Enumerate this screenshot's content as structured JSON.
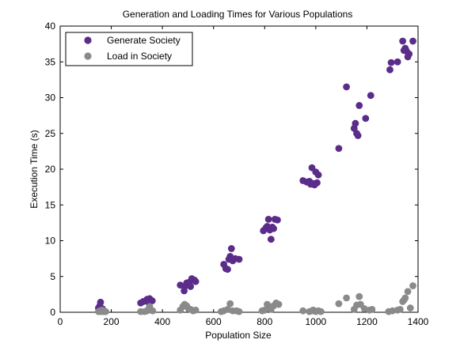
{
  "chart_data": {
    "type": "scatter",
    "title": "Generation and Loading Times for Various Populations",
    "xlabel": "Population Size",
    "ylabel": "Execution Time (s)",
    "xlim": [
      0,
      1400
    ],
    "ylim": [
      0,
      40
    ],
    "xticks": [
      0,
      200,
      400,
      600,
      800,
      1000,
      1200,
      1400
    ],
    "yticks": [
      0,
      5,
      10,
      15,
      20,
      25,
      30,
      35,
      40
    ],
    "grid": false,
    "legend_position": "top-left",
    "series": [
      {
        "name": "Generate Society",
        "color": "#5b2c8a",
        "points": [
          [
            150,
            0.6
          ],
          [
            155,
            0.9
          ],
          [
            158,
            1.4
          ],
          [
            162,
            0.3
          ],
          [
            165,
            0.5
          ],
          [
            168,
            0.2
          ],
          [
            172,
            0.1
          ],
          [
            315,
            1.3
          ],
          [
            325,
            1.5
          ],
          [
            335,
            1.6
          ],
          [
            340,
            1.8
          ],
          [
            345,
            1.4
          ],
          [
            350,
            1.9
          ],
          [
            355,
            1.7
          ],
          [
            360,
            1.6
          ],
          [
            470,
            3.8
          ],
          [
            485,
            3.0
          ],
          [
            490,
            3.7
          ],
          [
            495,
            4.1
          ],
          [
            505,
            4.2
          ],
          [
            510,
            3.6
          ],
          [
            515,
            4.7
          ],
          [
            525,
            4.5
          ],
          [
            530,
            4.3
          ],
          [
            640,
            6.7
          ],
          [
            648,
            6.1
          ],
          [
            655,
            6.0
          ],
          [
            660,
            7.4
          ],
          [
            665,
            7.8
          ],
          [
            670,
            8.9
          ],
          [
            675,
            7.2
          ],
          [
            685,
            7.5
          ],
          [
            700,
            7.4
          ],
          [
            795,
            11.4
          ],
          [
            805,
            11.8
          ],
          [
            810,
            12.0
          ],
          [
            815,
            13.0
          ],
          [
            820,
            11.5
          ],
          [
            825,
            10.2
          ],
          [
            830,
            11.9
          ],
          [
            835,
            11.7
          ],
          [
            840,
            13.0
          ],
          [
            850,
            12.9
          ],
          [
            950,
            18.4
          ],
          [
            965,
            18.2
          ],
          [
            975,
            18.3
          ],
          [
            980,
            17.9
          ],
          [
            985,
            20.2
          ],
          [
            990,
            18.0
          ],
          [
            995,
            17.8
          ],
          [
            1000,
            19.6
          ],
          [
            1005,
            18.1
          ],
          [
            1010,
            19.2
          ],
          [
            1090,
            22.9
          ],
          [
            1120,
            31.5
          ],
          [
            1150,
            25.7
          ],
          [
            1155,
            26.4
          ],
          [
            1160,
            25.0
          ],
          [
            1165,
            24.7
          ],
          [
            1170,
            28.9
          ],
          [
            1195,
            27.1
          ],
          [
            1215,
            30.3
          ],
          [
            1290,
            33.9
          ],
          [
            1295,
            34.9
          ],
          [
            1320,
            35.0
          ],
          [
            1340,
            37.9
          ],
          [
            1345,
            36.6
          ],
          [
            1350,
            36.9
          ],
          [
            1355,
            36.5
          ],
          [
            1360,
            35.7
          ],
          [
            1365,
            36.1
          ],
          [
            1380,
            37.9
          ]
        ]
      },
      {
        "name": "Load in Society",
        "color": "#8a8a8a",
        "points": [
          [
            150,
            0.1
          ],
          [
            155,
            0.2
          ],
          [
            160,
            0.1
          ],
          [
            165,
            0.3
          ],
          [
            170,
            0.1
          ],
          [
            178,
            0.1
          ],
          [
            315,
            0.1
          ],
          [
            330,
            0.1
          ],
          [
            340,
            0.2
          ],
          [
            345,
            0.4
          ],
          [
            350,
            0.8
          ],
          [
            355,
            0.3
          ],
          [
            362,
            0.2
          ],
          [
            470,
            0.3
          ],
          [
            480,
            0.8
          ],
          [
            487,
            1.1
          ],
          [
            495,
            0.9
          ],
          [
            502,
            0.5
          ],
          [
            510,
            0.4
          ],
          [
            520,
            0.2
          ],
          [
            530,
            0.3
          ],
          [
            630,
            0.1
          ],
          [
            640,
            0.2
          ],
          [
            655,
            0.4
          ],
          [
            665,
            1.2
          ],
          [
            675,
            0.2
          ],
          [
            690,
            0.2
          ],
          [
            700,
            0.1
          ],
          [
            790,
            0.2
          ],
          [
            800,
            0.3
          ],
          [
            810,
            1.1
          ],
          [
            818,
            0.5
          ],
          [
            825,
            0.4
          ],
          [
            835,
            0.9
          ],
          [
            845,
            1.3
          ],
          [
            855,
            1.1
          ],
          [
            950,
            0.2
          ],
          [
            975,
            0.1
          ],
          [
            985,
            0.2
          ],
          [
            990,
            0.3
          ],
          [
            1000,
            0.1
          ],
          [
            1010,
            0.2
          ],
          [
            1020,
            0.1
          ],
          [
            1090,
            1.2
          ],
          [
            1120,
            2.0
          ],
          [
            1150,
            0.4
          ],
          [
            1160,
            1.0
          ],
          [
            1170,
            2.2
          ],
          [
            1175,
            1.1
          ],
          [
            1190,
            0.5
          ],
          [
            1210,
            0.3
          ],
          [
            1220,
            0.4
          ],
          [
            1285,
            0.1
          ],
          [
            1300,
            0.2
          ],
          [
            1320,
            0.3
          ],
          [
            1330,
            0.4
          ],
          [
            1340,
            1.5
          ],
          [
            1345,
            1.7
          ],
          [
            1350,
            2.0
          ],
          [
            1360,
            2.9
          ],
          [
            1370,
            0.6
          ],
          [
            1380,
            3.7
          ]
        ]
      }
    ]
  }
}
